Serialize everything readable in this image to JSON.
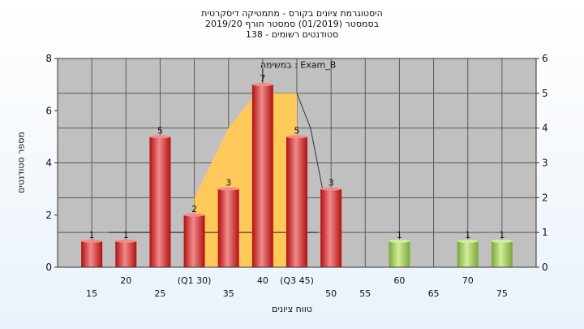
{
  "header": {
    "line1": "היסטוגרמת ציונים בקורס - מתמטיקה דיסקרטית",
    "line2": "בסמסטר  (01/2019)  סמסטר חורף 2019/20",
    "line3": "סטודנטים רשומים - 138"
  },
  "chart_data": {
    "type": "bar",
    "xlabel": "טווח ציונים",
    "ylabel": "מספר סטודנטים",
    "ylim": [
      0,
      8
    ],
    "y2lim": [
      0,
      6
    ],
    "yticks": [
      0,
      2,
      4,
      6,
      8
    ],
    "y2ticks": [
      0,
      1,
      2,
      3,
      4,
      5,
      6
    ],
    "x_range": [
      10,
      80
    ],
    "bars": [
      {
        "x": 15,
        "value": 1,
        "label": "1",
        "color": "red"
      },
      {
        "x": 20,
        "value": 1,
        "label": "1",
        "color": "red"
      },
      {
        "x": 25,
        "value": 5,
        "label": "5",
        "color": "red"
      },
      {
        "x": 30,
        "value": 2,
        "label": "2",
        "color": "red"
      },
      {
        "x": 35,
        "value": 3,
        "label": "3",
        "color": "red"
      },
      {
        "x": 40,
        "value": 7,
        "label": "7",
        "color": "red"
      },
      {
        "x": 45,
        "value": 5,
        "label": "5",
        "color": "red"
      },
      {
        "x": 50,
        "value": 3,
        "label": "3",
        "color": "red"
      },
      {
        "x": 60,
        "value": 1,
        "label": "1",
        "color": "green"
      },
      {
        "x": 70,
        "value": 1,
        "label": "1",
        "color": "green"
      },
      {
        "x": 75,
        "value": 1,
        "label": "1",
        "color": "green"
      }
    ],
    "tick_labels_row1": [
      {
        "x": 20,
        "text": "20"
      },
      {
        "x": 30,
        "text": "(Q1 30)"
      },
      {
        "x": 40,
        "text": "40"
      },
      {
        "x": 45,
        "text": "(Q3 45)"
      },
      {
        "x": 60,
        "text": "60"
      },
      {
        "x": 70,
        "text": "70"
      }
    ],
    "tick_labels_row2": [
      {
        "x": 15,
        "text": "15"
      },
      {
        "x": 25,
        "text": "25"
      },
      {
        "x": 35,
        "text": "35"
      },
      {
        "x": 50,
        "text": "50"
      },
      {
        "x": 55,
        "text": "55"
      },
      {
        "x": 65,
        "text": "65"
      },
      {
        "x": 75,
        "text": "75"
      }
    ],
    "box_plot": {
      "q1": 30,
      "q3": 45,
      "area_points": [
        {
          "x": 30,
          "y2": 2
        },
        {
          "x": 35,
          "y2": 4
        },
        {
          "x": 39,
          "y2": 5
        },
        {
          "x": 45,
          "y2": 5
        }
      ],
      "drop_line": [
        {
          "x": 45,
          "y2": 5
        },
        {
          "x": 47,
          "y2": 4
        },
        {
          "x": 49,
          "y2": 2
        }
      ],
      "whisker_x": [
        17.5,
        48
      ],
      "whisker_y": 1
    },
    "annotation": {
      "text": "במשימה : Exam_B",
      "x": 40,
      "y": 7.7
    },
    "colors": {
      "plot_bg": "#c0c0c0",
      "red_light": "#f28a8a",
      "red_dark": "#b01010",
      "green_light": "#d4ec9a",
      "green_dark": "#78a83a",
      "area": "#ffc85a"
    }
  }
}
